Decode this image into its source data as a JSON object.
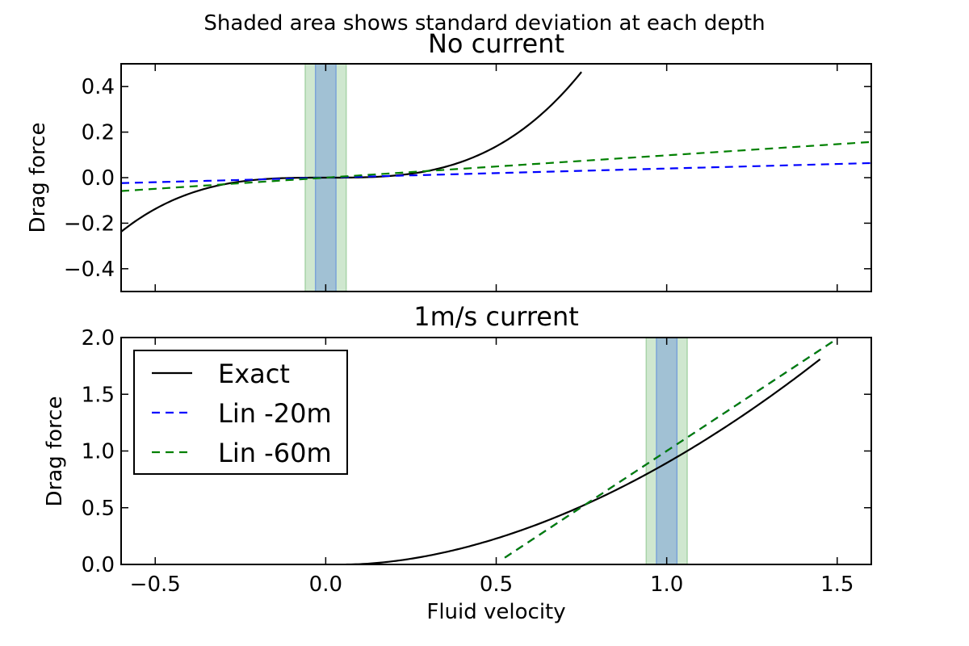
{
  "suptitle": "Shaded area shows standard deviation at each depth",
  "chart_data": [
    {
      "type": "line",
      "title": "No current",
      "xlabel": "",
      "ylabel": "Drag force",
      "xlim": [
        -0.6,
        1.6
      ],
      "ylim": [
        -0.5,
        0.5
      ],
      "xticks": [
        -0.5,
        0.0,
        0.5,
        1.0,
        1.5
      ],
      "yticks": [
        -0.4,
        -0.2,
        0.0,
        0.2,
        0.4
      ],
      "ytick_labels": [
        "−0.4",
        "−0.2",
        "0.0",
        "0.2",
        "0.4"
      ],
      "grid": false,
      "bands": [
        {
          "x0": -0.06,
          "x1": 0.06,
          "color": "#a8d4a8",
          "opacity": 0.55
        },
        {
          "x0": -0.03,
          "x1": 0.03,
          "color": "#7ba3d8",
          "opacity": 0.55
        }
      ],
      "series": [
        {
          "kind": "cubic",
          "a": 1.1,
          "v0": 0,
          "color": "#000000",
          "dash": "",
          "x": [
            -0.6,
            0.75
          ]
        },
        {
          "kind": "linear",
          "slope": 0.04,
          "b": 0,
          "color": "#0000ff",
          "dash": "10,7",
          "x": [
            -0.6,
            1.6
          ]
        },
        {
          "kind": "linear",
          "slope": 0.098,
          "b": 0,
          "color": "#008000",
          "dash": "10,7",
          "x": [
            -0.6,
            1.6
          ]
        }
      ]
    },
    {
      "type": "line",
      "title": "1m/s current",
      "xlabel": "Fluid velocity",
      "ylabel": "Drag force",
      "xlim": [
        -0.6,
        1.6
      ],
      "ylim": [
        0.0,
        2.0
      ],
      "xticks": [
        -0.5,
        0.0,
        0.5,
        1.0,
        1.5
      ],
      "xtick_labels": [
        "−0.5",
        "0.0",
        "0.5",
        "1.0",
        "1.5"
      ],
      "yticks": [
        0.0,
        0.5,
        1.0,
        1.5,
        2.0
      ],
      "ytick_labels": [
        "0.0",
        "0.5",
        "1.0",
        "1.5",
        "2.0"
      ],
      "grid": false,
      "legend_position": "top-left",
      "bands": [
        {
          "x0": 0.94,
          "x1": 1.06,
          "color": "#a8d4a8",
          "opacity": 0.55
        },
        {
          "x0": 0.97,
          "x1": 1.03,
          "color": "#7ba3d8",
          "opacity": 0.55
        }
      ],
      "series": [
        {
          "name": "Exact",
          "kind": "power",
          "a": 1.0,
          "v0": 0.06,
          "p": 1.8,
          "color": "#000000",
          "dash": "",
          "x": [
            0.06,
            1.45
          ]
        },
        {
          "name": "Lin -20m",
          "kind": "linear",
          "slope": 1.98,
          "b": 1.0,
          "x0": 1.0,
          "color": "#0000ff",
          "dash": "10,7",
          "x": [
            0.525,
            1.5
          ]
        },
        {
          "name": "Lin -60m",
          "kind": "linear",
          "slope": 1.98,
          "b": 1.0,
          "x0": 1.0,
          "color": "#008000",
          "dash": "10,7",
          "x": [
            0.525,
            1.5
          ]
        }
      ]
    }
  ]
}
